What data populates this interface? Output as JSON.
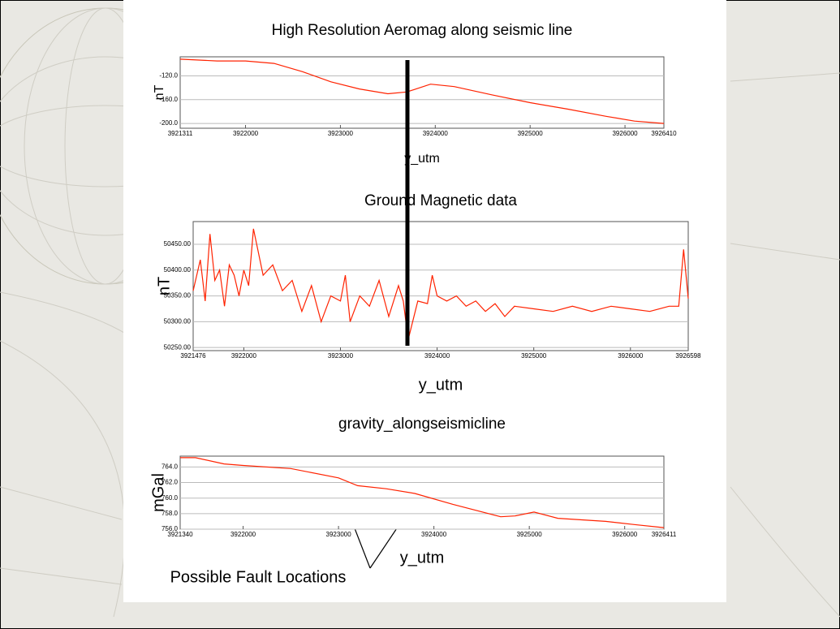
{
  "chart_data": [
    {
      "type": "line",
      "title": "High Resolution Aeromag along seismic line",
      "x_label": "y_utm",
      "y_label": "nT",
      "x": [
        3921311,
        3921700,
        3922000,
        3922300,
        3922600,
        3922900,
        3923200,
        3923500,
        3923700,
        3923950,
        3924200,
        3924600,
        3925000,
        3925400,
        3925800,
        3926100,
        3926410
      ],
      "values": [
        -92,
        -95,
        -95,
        -99,
        -113,
        -130,
        -142,
        -150,
        -147,
        -134,
        -138,
        -152,
        -165,
        -176,
        -188,
        -196,
        -200
      ],
      "color": "#ff2200",
      "xlim": [
        3921311,
        3926410
      ],
      "ylim": [
        -208,
        -88
      ],
      "xticks": [
        3921311,
        3922000,
        3923000,
        3924000,
        3925000,
        3926000,
        3926410
      ],
      "yticks": [
        {
          "value": -120,
          "label": "-120.0"
        },
        {
          "value": -160,
          "label": "-160.0"
        },
        {
          "value": -200,
          "label": "-200.0"
        }
      ],
      "grid": true
    },
    {
      "type": "line",
      "title": "Ground Magnetic data",
      "x_label": "y_utm",
      "y_label": "nT",
      "x": [
        3921476,
        3921550,
        3921600,
        3921650,
        3921700,
        3921750,
        3921800,
        3921850,
        3921900,
        3921950,
        3922000,
        3922050,
        3922100,
        3922200,
        3922300,
        3922400,
        3922500,
        3922600,
        3922700,
        3922800,
        3922900,
        3923000,
        3923050,
        3923100,
        3923200,
        3923300,
        3923400,
        3923500,
        3923600,
        3923650,
        3923700,
        3923800,
        3923900,
        3923950,
        3924000,
        3924100,
        3924200,
        3924300,
        3924400,
        3924500,
        3924600,
        3924700,
        3924800,
        3925000,
        3925200,
        3925400,
        3925600,
        3925800,
        3926000,
        3926200,
        3926400,
        3926500,
        3926550,
        3926598
      ],
      "values": [
        50360,
        50420,
        50340,
        50470,
        50380,
        50400,
        50330,
        50410,
        50390,
        50350,
        50400,
        50370,
        50480,
        50390,
        50410,
        50360,
        50380,
        50320,
        50370,
        50300,
        50350,
        50340,
        50390,
        50300,
        50350,
        50330,
        50380,
        50310,
        50370,
        50340,
        50265,
        50340,
        50335,
        50390,
        50350,
        50340,
        50350,
        50330,
        50340,
        50320,
        50335,
        50310,
        50330,
        50325,
        50320,
        50330,
        50320,
        50330,
        50325,
        50320,
        50330,
        50330,
        50440,
        50345
      ],
      "color": "#ff2200",
      "xlim": [
        3921476,
        3926598
      ],
      "ylim": [
        50244,
        50494
      ],
      "xticks": [
        3921476,
        3922000,
        3923000,
        3924000,
        3925000,
        3926000,
        3926598
      ],
      "yticks": [
        {
          "value": 50250,
          "label": "50250.00"
        },
        {
          "value": 50300,
          "label": "50300.00"
        },
        {
          "value": 50350,
          "label": "50350.00"
        },
        {
          "value": 50400,
          "label": "50400.00"
        },
        {
          "value": 50450,
          "label": "50450.00"
        }
      ],
      "grid": true
    },
    {
      "type": "line",
      "title": "gravity_alongseismicline",
      "x_label": "y_utm",
      "y_label": "mGal",
      "annotation": "Possible Fault Locations",
      "x": [
        3921340,
        3921500,
        3921800,
        3922000,
        3922500,
        3923000,
        3923200,
        3923500,
        3923800,
        3924200,
        3924700,
        3924850,
        3925050,
        3925300,
        3925800,
        3926100,
        3926411
      ],
      "values": [
        765.2,
        765.2,
        764.4,
        764.2,
        763.8,
        762.6,
        761.6,
        761.2,
        760.6,
        759.2,
        757.6,
        757.7,
        758.2,
        757.4,
        757.0,
        756.6,
        756.2
      ],
      "color": "#ff2200",
      "xlim": [
        3921340,
        3926411
      ],
      "ylim": [
        756,
        765.4
      ],
      "xticks": [
        3921340,
        3922000,
        3923000,
        3924000,
        3925000,
        3926000,
        3926411
      ],
      "yticks": [
        {
          "value": 756,
          "label": "756.0"
        },
        {
          "value": 758,
          "label": "758.0"
        },
        {
          "value": 760,
          "label": "760.0"
        },
        {
          "value": 762,
          "label": "762.0"
        },
        {
          "value": 764,
          "label": "764.0"
        }
      ],
      "grid": true
    }
  ]
}
